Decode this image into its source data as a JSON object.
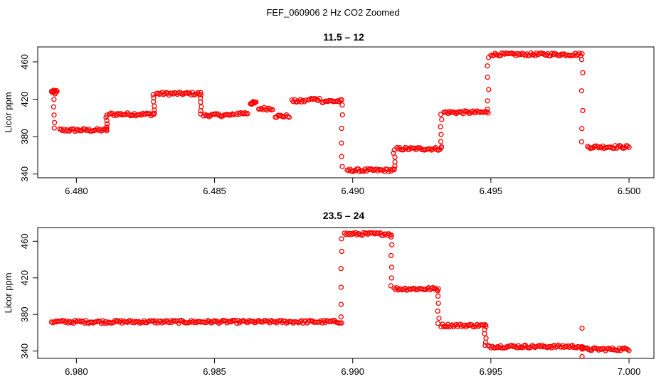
{
  "figure": {
    "suptitle": "FEF_060906  2 Hz CO2 Zoomed"
  },
  "chart_data": [
    {
      "type": "scatter",
      "title": "11.5 – 12",
      "xlabel": "",
      "ylabel": "Licor ppm",
      "xlim": [
        6.4786,
        6.5009
      ],
      "ylim": [
        336,
        476
      ],
      "xticks": [
        6.48,
        6.485,
        6.49,
        6.495,
        6.5
      ],
      "xtick_labels": [
        "6.480",
        "6.485",
        "6.490",
        "6.495",
        "6.500"
      ],
      "yticks": [
        340,
        380,
        420,
        460
      ],
      "ytick_labels": [
        "340",
        "380",
        "420",
        "460"
      ],
      "marker_color": "#ff0000",
      "marker": "open-circle",
      "segments": [
        [
          6.4791,
          6.4793,
          428
        ],
        [
          6.4794,
          6.4811,
          387
        ],
        [
          6.4812,
          6.4828,
          404
        ],
        [
          6.4829,
          6.4845,
          426
        ],
        [
          6.4846,
          6.4857,
          403
        ],
        [
          6.4858,
          6.4862,
          405
        ],
        [
          6.4863,
          6.4865,
          416
        ],
        [
          6.4866,
          6.4871,
          410
        ],
        [
          6.4872,
          6.4877,
          402
        ],
        [
          6.4878,
          6.4883,
          418
        ],
        [
          6.4884,
          6.4888,
          420
        ],
        [
          6.4889,
          6.4896,
          418
        ],
        [
          6.4898,
          6.4915,
          344
        ],
        [
          6.4916,
          6.4932,
          367
        ],
        [
          6.4933,
          6.4949,
          406
        ],
        [
          6.495,
          6.4983,
          468
        ],
        [
          6.4985,
          6.5,
          369
        ]
      ],
      "transitions": [
        [
          6.4792,
          428,
          387
        ],
        [
          6.4811,
          387,
          404
        ],
        [
          6.4828,
          404,
          426
        ],
        [
          6.4845,
          426,
          403
        ],
        [
          6.4896,
          418,
          344
        ],
        [
          6.4915,
          344,
          367
        ],
        [
          6.4932,
          367,
          406
        ],
        [
          6.4949,
          406,
          468
        ],
        [
          6.4983,
          468,
          369
        ]
      ]
    },
    {
      "type": "scatter",
      "title": "23.5 – 24",
      "xlabel": "",
      "ylabel": "Licor ppm",
      "xlim": [
        6.9786,
        7.0009
      ],
      "ylim": [
        332,
        475
      ],
      "xticks": [
        6.98,
        6.985,
        6.99,
        6.995,
        7.0
      ],
      "xtick_labels": [
        "6.980",
        "6.985",
        "6.990",
        "6.995",
        "7.000"
      ],
      "yticks": [
        340,
        380,
        420,
        460
      ],
      "ytick_labels": [
        "340",
        "380",
        "420",
        "460"
      ],
      "marker_color": "#ff0000",
      "marker": "open-circle",
      "segments": [
        [
          6.9791,
          6.9896,
          372
        ],
        [
          6.9897,
          6.9914,
          468
        ],
        [
          6.9915,
          6.9931,
          408
        ],
        [
          6.9932,
          6.9948,
          368
        ],
        [
          6.9949,
          6.9982,
          345
        ],
        [
          6.9984,
          7.0,
          342
        ]
      ],
      "transitions": [
        [
          6.9896,
          372,
          468
        ],
        [
          6.9914,
          468,
          408
        ],
        [
          6.9931,
          408,
          368
        ],
        [
          6.9948,
          368,
          345
        ],
        [
          6.9983,
          345,
          342
        ]
      ],
      "outliers": [
        [
          6.9983,
          365
        ],
        [
          6.9983,
          334
        ]
      ]
    }
  ]
}
